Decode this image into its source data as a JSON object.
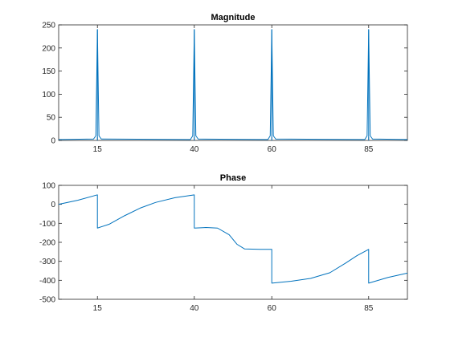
{
  "chart_data": [
    {
      "type": "line",
      "title": "Magnitude",
      "xlabel": "",
      "ylabel": "",
      "xlim": [
        5,
        95
      ],
      "ylim": [
        0,
        250
      ],
      "xticks": [
        15,
        40,
        60,
        85
      ],
      "yticks": [
        0,
        50,
        100,
        150,
        200,
        250
      ],
      "grid": false,
      "color": "#0072bd",
      "peaks": [
        {
          "x": 15,
          "peak": 240,
          "shoulder": 150
        },
        {
          "x": 40,
          "peak": 240,
          "shoulder": 150
        },
        {
          "x": 60,
          "peak": 240,
          "shoulder": 150
        },
        {
          "x": 85,
          "peak": 240,
          "shoulder": 150
        }
      ],
      "points": [
        [
          5,
          2
        ],
        [
          14,
          3
        ],
        [
          14.6,
          10
        ],
        [
          14.85,
          150
        ],
        [
          15,
          240
        ],
        [
          15.15,
          150
        ],
        [
          15.4,
          10
        ],
        [
          16,
          3
        ],
        [
          39,
          2
        ],
        [
          39.6,
          10
        ],
        [
          39.85,
          150
        ],
        [
          40,
          240
        ],
        [
          40.15,
          150
        ],
        [
          40.4,
          10
        ],
        [
          41,
          3
        ],
        [
          59,
          2
        ],
        [
          59.6,
          10
        ],
        [
          59.85,
          150
        ],
        [
          60,
          240
        ],
        [
          60.15,
          150
        ],
        [
          60.4,
          10
        ],
        [
          61,
          3
        ],
        [
          84,
          2
        ],
        [
          84.6,
          10
        ],
        [
          84.85,
          150
        ],
        [
          85,
          240
        ],
        [
          85.15,
          150
        ],
        [
          85.4,
          10
        ],
        [
          86,
          3
        ],
        [
          95,
          2
        ]
      ]
    },
    {
      "type": "line",
      "title": "Phase",
      "xlabel": "",
      "ylabel": "",
      "xlim": [
        5,
        95
      ],
      "ylim": [
        -500,
        100
      ],
      "xticks": [
        15,
        40,
        60,
        85
      ],
      "yticks": [
        -500,
        -400,
        -300,
        -200,
        -100,
        0,
        100
      ],
      "grid": false,
      "color": "#0072bd",
      "points": [
        [
          5,
          0
        ],
        [
          10,
          22
        ],
        [
          15,
          50
        ],
        [
          15,
          -125
        ],
        [
          18,
          -105
        ],
        [
          22,
          -60
        ],
        [
          26,
          -20
        ],
        [
          30,
          10
        ],
        [
          35,
          35
        ],
        [
          40,
          50
        ],
        [
          40,
          -125
        ],
        [
          43,
          -122
        ],
        [
          46,
          -125
        ],
        [
          49,
          -160
        ],
        [
          51,
          -210
        ],
        [
          53,
          -235
        ],
        [
          57,
          -237
        ],
        [
          60,
          -237
        ],
        [
          60,
          -415
        ],
        [
          65,
          -405
        ],
        [
          70,
          -390
        ],
        [
          75,
          -360
        ],
        [
          79,
          -310
        ],
        [
          82,
          -270
        ],
        [
          85,
          -237
        ],
        [
          85,
          -415
        ],
        [
          90,
          -385
        ],
        [
          95,
          -362
        ]
      ]
    }
  ]
}
